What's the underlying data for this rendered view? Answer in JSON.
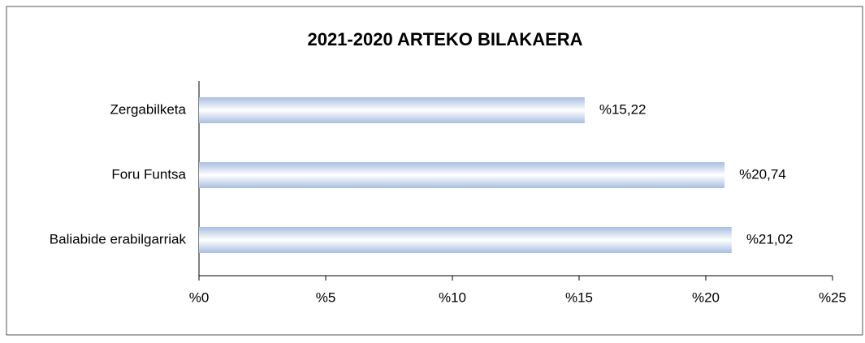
{
  "chart_data": {
    "type": "bar",
    "orientation": "horizontal",
    "title": "2021-2020  ARTEKO BILAKAERA",
    "categories": [
      "Zergabilketa",
      "Foru Funtsa",
      "Baliabide erabilgarriak"
    ],
    "values": [
      15.22,
      20.74,
      21.02
    ],
    "value_labels": [
      "%15,22",
      "%20,74",
      "%21,02"
    ],
    "color": "#a9bee0",
    "xlim": [
      0,
      25
    ],
    "xticks": [
      {
        "value": 0,
        "label": "%0"
      },
      {
        "value": 5,
        "label": "%5"
      },
      {
        "value": 10,
        "label": "%10"
      },
      {
        "value": 15,
        "label": "%15"
      },
      {
        "value": 20,
        "label": "%20"
      },
      {
        "value": 25,
        "label": "%25"
      }
    ],
    "grid": false
  }
}
